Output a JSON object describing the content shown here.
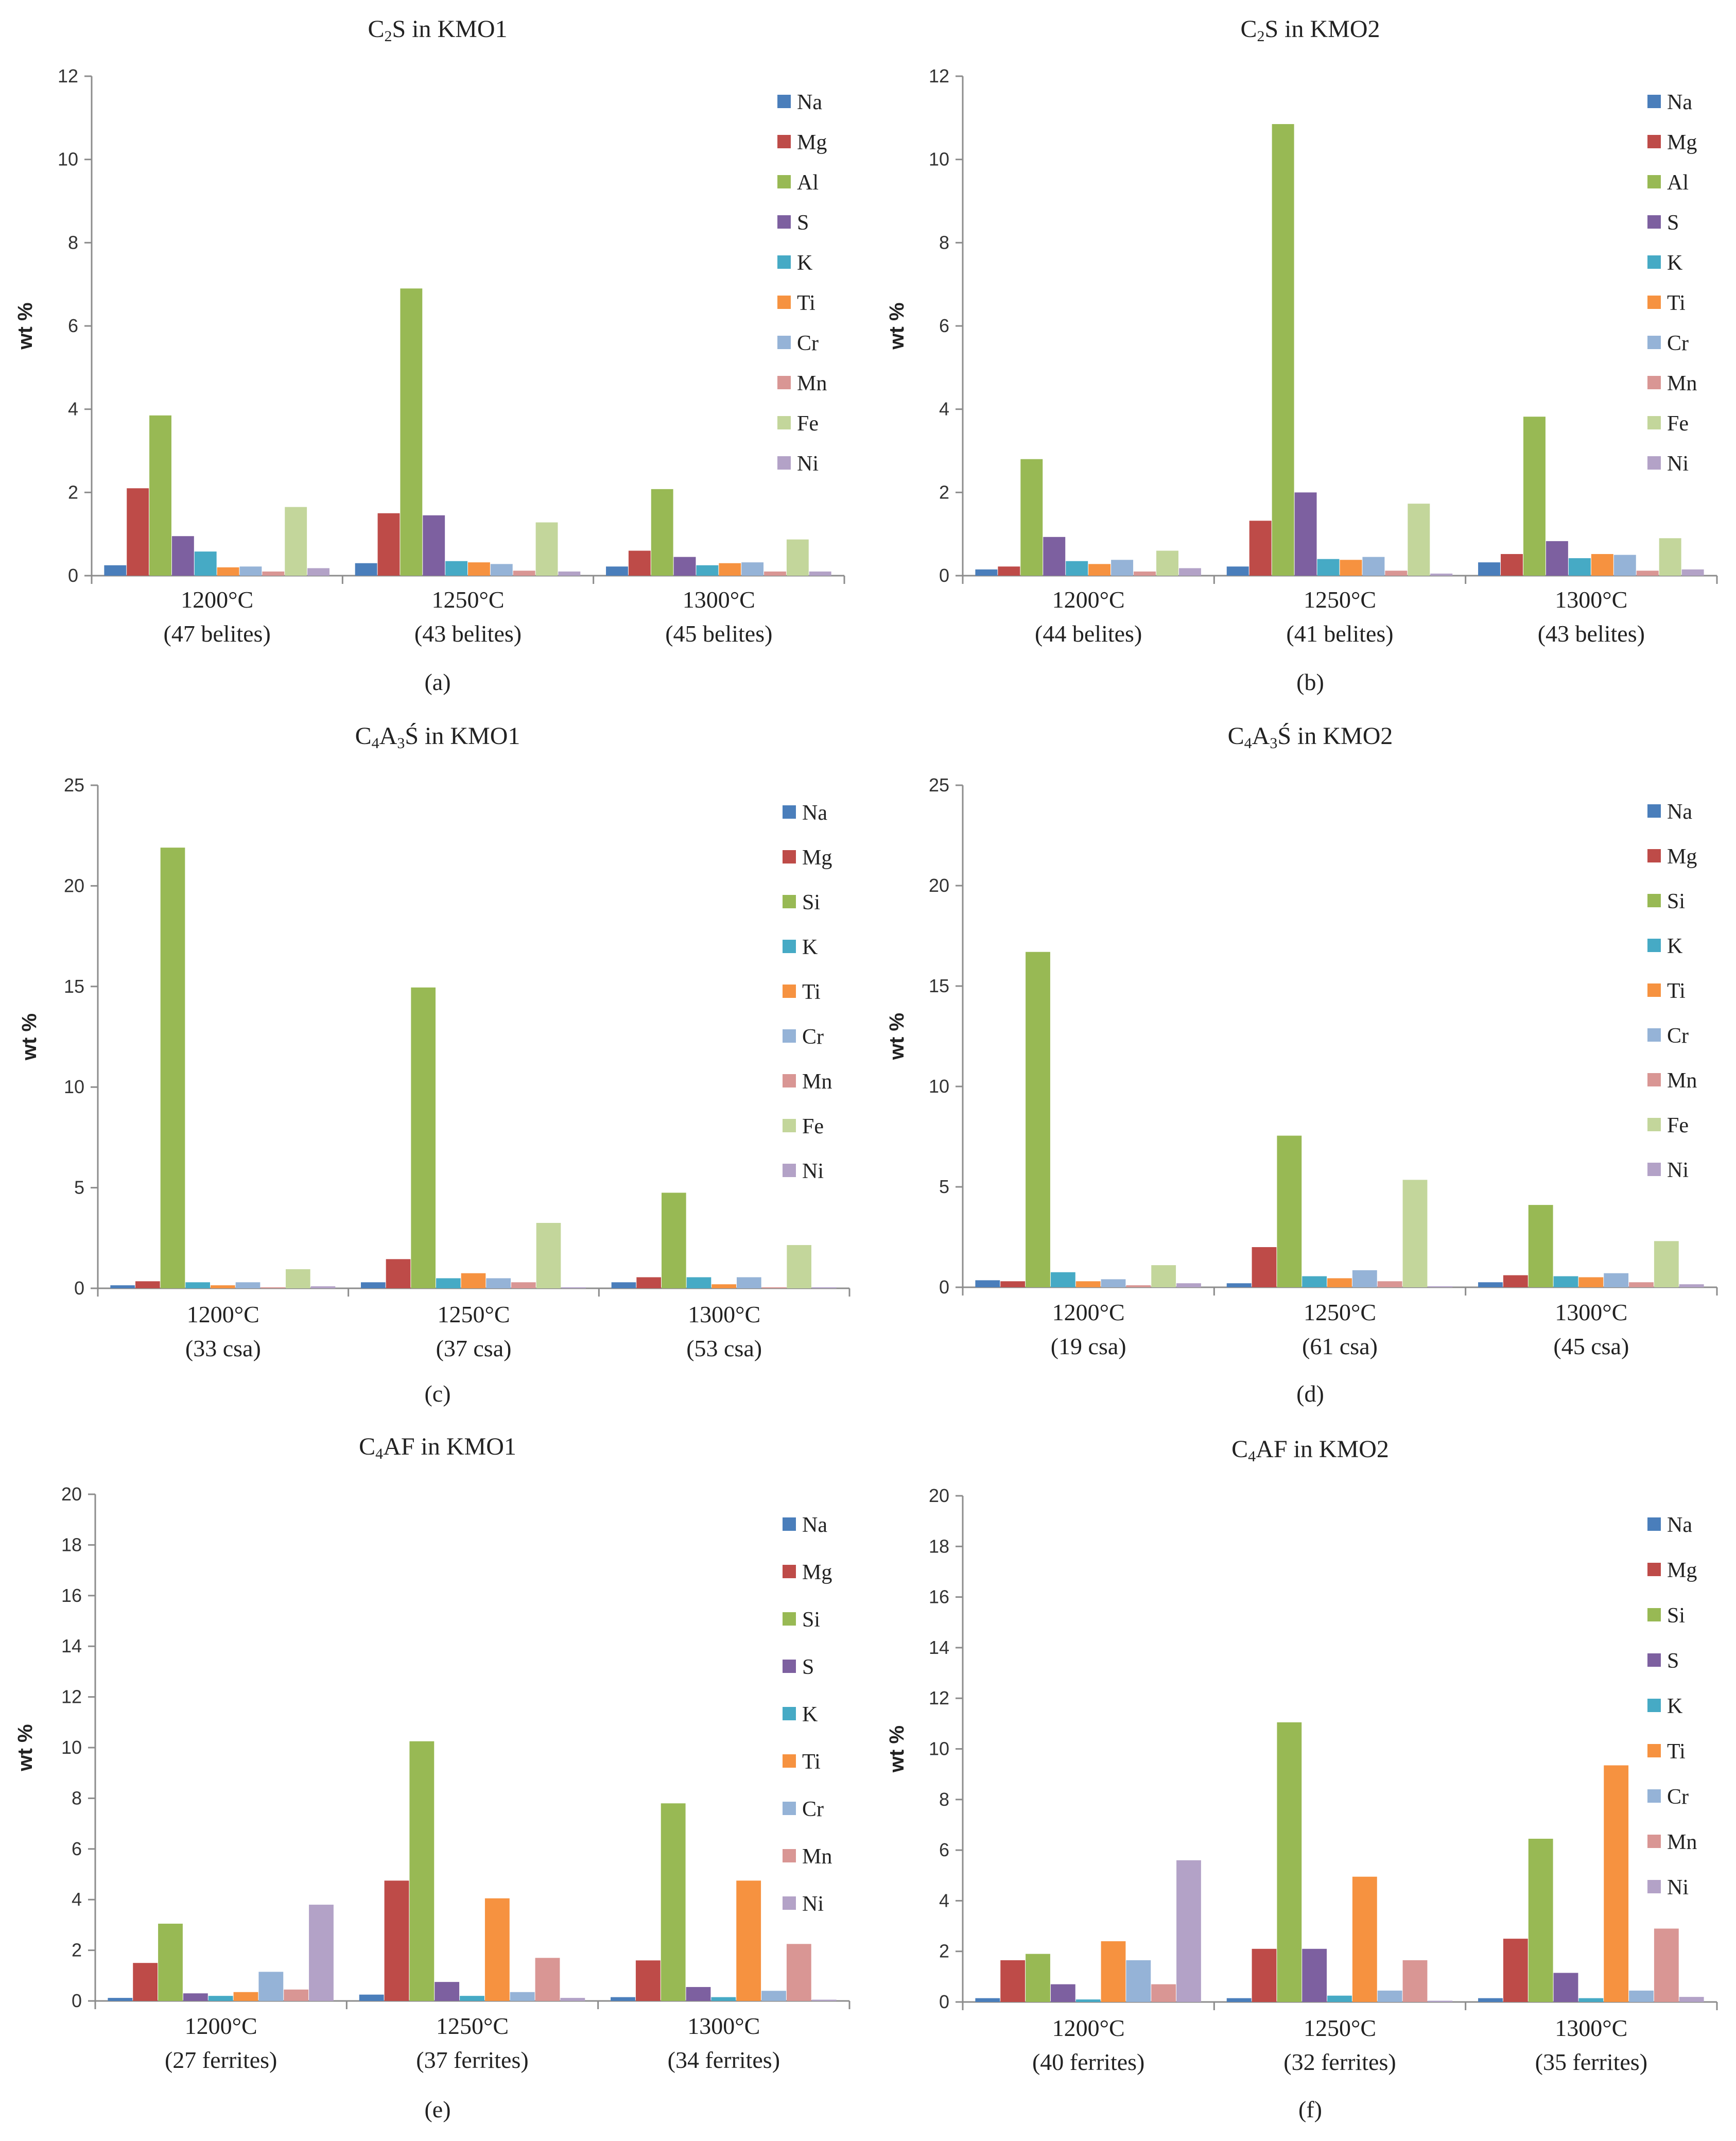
{
  "colors": {
    "Na": "#4a7ebb",
    "Mg": "#be4b48",
    "Al": "#98b954",
    "Si": "#98b954",
    "S": "#7d60a0",
    "K": "#46aac5",
    "Ti": "#f69240",
    "Cr": "#95b3d7",
    "Mn": "#d99694",
    "Fe": "#c3d69b",
    "Ni": "#b3a2c7"
  },
  "chart_data": [
    {
      "id": "a",
      "type": "bar",
      "panel_label": "(a)",
      "title_parts": [
        "C",
        "2",
        "S in KMO1"
      ],
      "ylabel": "wt %",
      "ylim": [
        0,
        12
      ],
      "yticks": [
        "0",
        "2",
        "4",
        "6",
        "8",
        "10",
        "12"
      ],
      "categories": [
        {
          "temp": "1200°C",
          "count": "(47 belites)"
        },
        {
          "temp": "1250°C",
          "count": "(43 belites)"
        },
        {
          "temp": "1300°C",
          "count": "(45 belites)"
        }
      ],
      "series": [
        {
          "name": "Na",
          "values": [
            0.25,
            0.3,
            0.22
          ]
        },
        {
          "name": "Mg",
          "values": [
            2.1,
            1.5,
            0.6
          ]
        },
        {
          "name": "Al",
          "values": [
            3.85,
            6.9,
            2.08
          ]
        },
        {
          "name": "S",
          "values": [
            0.95,
            1.45,
            0.45
          ]
        },
        {
          "name": "K",
          "values": [
            0.58,
            0.35,
            0.25
          ]
        },
        {
          "name": "Ti",
          "values": [
            0.2,
            0.32,
            0.3
          ]
        },
        {
          "name": "Cr",
          "values": [
            0.22,
            0.28,
            0.32
          ]
        },
        {
          "name": "Mn",
          "values": [
            0.1,
            0.12,
            0.1
          ]
        },
        {
          "name": "Fe",
          "values": [
            1.65,
            1.28,
            0.87
          ]
        },
        {
          "name": "Ni",
          "values": [
            0.18,
            0.1,
            0.1
          ]
        }
      ]
    },
    {
      "id": "b",
      "type": "bar",
      "panel_label": "(b)",
      "title_parts": [
        "C",
        "2",
        "S in KMO2"
      ],
      "ylabel": "wt %",
      "ylim": [
        0,
        12
      ],
      "yticks": [
        "0",
        "2",
        "4",
        "6",
        "8",
        "10",
        "12"
      ],
      "categories": [
        {
          "temp": "1200°C",
          "count": "(44 belites)"
        },
        {
          "temp": "1250°C",
          "count": "(41 belites)"
        },
        {
          "temp": "1300°C",
          "count": "(43 belites)"
        }
      ],
      "series": [
        {
          "name": "Na",
          "values": [
            0.15,
            0.22,
            0.32
          ]
        },
        {
          "name": "Mg",
          "values": [
            0.22,
            1.32,
            0.52
          ]
        },
        {
          "name": "Al",
          "values": [
            2.8,
            10.85,
            3.82
          ]
        },
        {
          "name": "S",
          "values": [
            0.93,
            2.0,
            0.83
          ]
        },
        {
          "name": "K",
          "values": [
            0.35,
            0.4,
            0.42
          ]
        },
        {
          "name": "Ti",
          "values": [
            0.28,
            0.38,
            0.52
          ]
        },
        {
          "name": "Cr",
          "values": [
            0.38,
            0.45,
            0.5
          ]
        },
        {
          "name": "Mn",
          "values": [
            0.1,
            0.12,
            0.12
          ]
        },
        {
          "name": "Fe",
          "values": [
            0.6,
            1.73,
            0.9
          ]
        },
        {
          "name": "Ni",
          "values": [
            0.18,
            0.05,
            0.15
          ]
        }
      ]
    },
    {
      "id": "c",
      "type": "bar",
      "panel_label": "(c)",
      "title_parts": [
        "C",
        "4",
        "A",
        "3",
        "Ś in KMO1"
      ],
      "ylabel": "wt %",
      "ylim": [
        0,
        25
      ],
      "yticks": [
        "0",
        "5",
        "10",
        "15",
        "20",
        "25"
      ],
      "categories": [
        {
          "temp": "1200°C",
          "count": "(33 csa)"
        },
        {
          "temp": "1250°C",
          "count": "(37 csa)"
        },
        {
          "temp": "1300°C",
          "count": "(53 csa)"
        }
      ],
      "series": [
        {
          "name": "Na",
          "values": [
            0.15,
            0.3,
            0.3
          ]
        },
        {
          "name": "Mg",
          "values": [
            0.35,
            1.45,
            0.55
          ]
        },
        {
          "name": "Si",
          "values": [
            21.9,
            14.95,
            4.75
          ]
        },
        {
          "name": "K",
          "values": [
            0.3,
            0.5,
            0.55
          ]
        },
        {
          "name": "Ti",
          "values": [
            0.15,
            0.75,
            0.2
          ]
        },
        {
          "name": "Cr",
          "values": [
            0.3,
            0.5,
            0.55
          ]
        },
        {
          "name": "Mn",
          "values": [
            0.05,
            0.3,
            0.05
          ]
        },
        {
          "name": "Fe",
          "values": [
            0.95,
            3.25,
            2.15
          ]
        },
        {
          "name": "Ni",
          "values": [
            0.1,
            0.05,
            0.05
          ]
        }
      ]
    },
    {
      "id": "d",
      "type": "bar",
      "panel_label": "(d)",
      "title_parts": [
        "C",
        "4",
        "A",
        "3",
        "Ś in KMO2"
      ],
      "ylabel": "wt %",
      "ylim": [
        0,
        25
      ],
      "yticks": [
        "0",
        "5",
        "10",
        "15",
        "20",
        "25"
      ],
      "categories": [
        {
          "temp": "1200°C",
          "count": "(19 csa)"
        },
        {
          "temp": "1250°C",
          "count": "(61 csa)"
        },
        {
          "temp": "1300°C",
          "count": "(45 csa)"
        }
      ],
      "series": [
        {
          "name": "Na",
          "values": [
            0.35,
            0.2,
            0.25
          ]
        },
        {
          "name": "Mg",
          "values": [
            0.3,
            2.0,
            0.6
          ]
        },
        {
          "name": "Si",
          "values": [
            16.7,
            7.55,
            4.1
          ]
        },
        {
          "name": "K",
          "values": [
            0.75,
            0.55,
            0.55
          ]
        },
        {
          "name": "Ti",
          "values": [
            0.3,
            0.45,
            0.5
          ]
        },
        {
          "name": "Cr",
          "values": [
            0.4,
            0.85,
            0.7
          ]
        },
        {
          "name": "Mn",
          "values": [
            0.1,
            0.3,
            0.25
          ]
        },
        {
          "name": "Fe",
          "values": [
            1.1,
            5.35,
            2.3
          ]
        },
        {
          "name": "Ni",
          "values": [
            0.2,
            0.05,
            0.15
          ]
        }
      ]
    },
    {
      "id": "e",
      "type": "bar",
      "panel_label": "(e)",
      "title_parts": [
        "C",
        "4",
        "AF in KMO1"
      ],
      "ylabel": "wt %",
      "ylim": [
        0,
        20
      ],
      "yticks": [
        "0",
        "2",
        "4",
        "6",
        "8",
        "10",
        "12",
        "14",
        "16",
        "18",
        "20"
      ],
      "categories": [
        {
          "temp": "1200°C",
          "count": "(27 ferrites)"
        },
        {
          "temp": "1250°C",
          "count": "(37 ferrites)"
        },
        {
          "temp": "1300°C",
          "count": "(34 ferrites)"
        }
      ],
      "series": [
        {
          "name": "Na",
          "values": [
            0.12,
            0.25,
            0.15
          ]
        },
        {
          "name": "Mg",
          "values": [
            1.5,
            4.75,
            1.6
          ]
        },
        {
          "name": "Si",
          "values": [
            3.05,
            10.25,
            7.8
          ]
        },
        {
          "name": "S",
          "values": [
            0.3,
            0.75,
            0.55
          ]
        },
        {
          "name": "K",
          "values": [
            0.2,
            0.2,
            0.15
          ]
        },
        {
          "name": "Ti",
          "values": [
            0.35,
            4.05,
            4.75
          ]
        },
        {
          "name": "Cr",
          "values": [
            1.15,
            0.35,
            0.4
          ]
        },
        {
          "name": "Mn",
          "values": [
            0.45,
            1.7,
            2.25
          ]
        },
        {
          "name": "Ni",
          "values": [
            3.8,
            0.12,
            0.05
          ]
        }
      ]
    },
    {
      "id": "f",
      "type": "bar",
      "panel_label": "(f)",
      "title_parts": [
        "C",
        "4",
        "AF in KMO2"
      ],
      "ylabel": "wt %",
      "ylim": [
        0,
        20
      ],
      "yticks": [
        "0",
        "2",
        "4",
        "6",
        "8",
        "10",
        "12",
        "14",
        "16",
        "18",
        "20"
      ],
      "categories": [
        {
          "temp": "1200°C",
          "count": "(40 ferrites)"
        },
        {
          "temp": "1250°C",
          "count": "(32 ferrites)"
        },
        {
          "temp": "1300°C",
          "count": "(35 ferrites)"
        }
      ],
      "series": [
        {
          "name": "Na",
          "values": [
            0.15,
            0.15,
            0.15
          ]
        },
        {
          "name": "Mg",
          "values": [
            1.65,
            2.1,
            2.5
          ]
        },
        {
          "name": "Si",
          "values": [
            1.9,
            11.05,
            6.45
          ]
        },
        {
          "name": "S",
          "values": [
            0.7,
            2.1,
            1.15
          ]
        },
        {
          "name": "K",
          "values": [
            0.1,
            0.25,
            0.15
          ]
        },
        {
          "name": "Ti",
          "values": [
            2.4,
            4.95,
            9.35
          ]
        },
        {
          "name": "Cr",
          "values": [
            1.65,
            0.45,
            0.45
          ]
        },
        {
          "name": "Mn",
          "values": [
            0.7,
            1.65,
            2.9
          ]
        },
        {
          "name": "Ni",
          "values": [
            5.6,
            0.05,
            0.2
          ]
        }
      ]
    }
  ]
}
